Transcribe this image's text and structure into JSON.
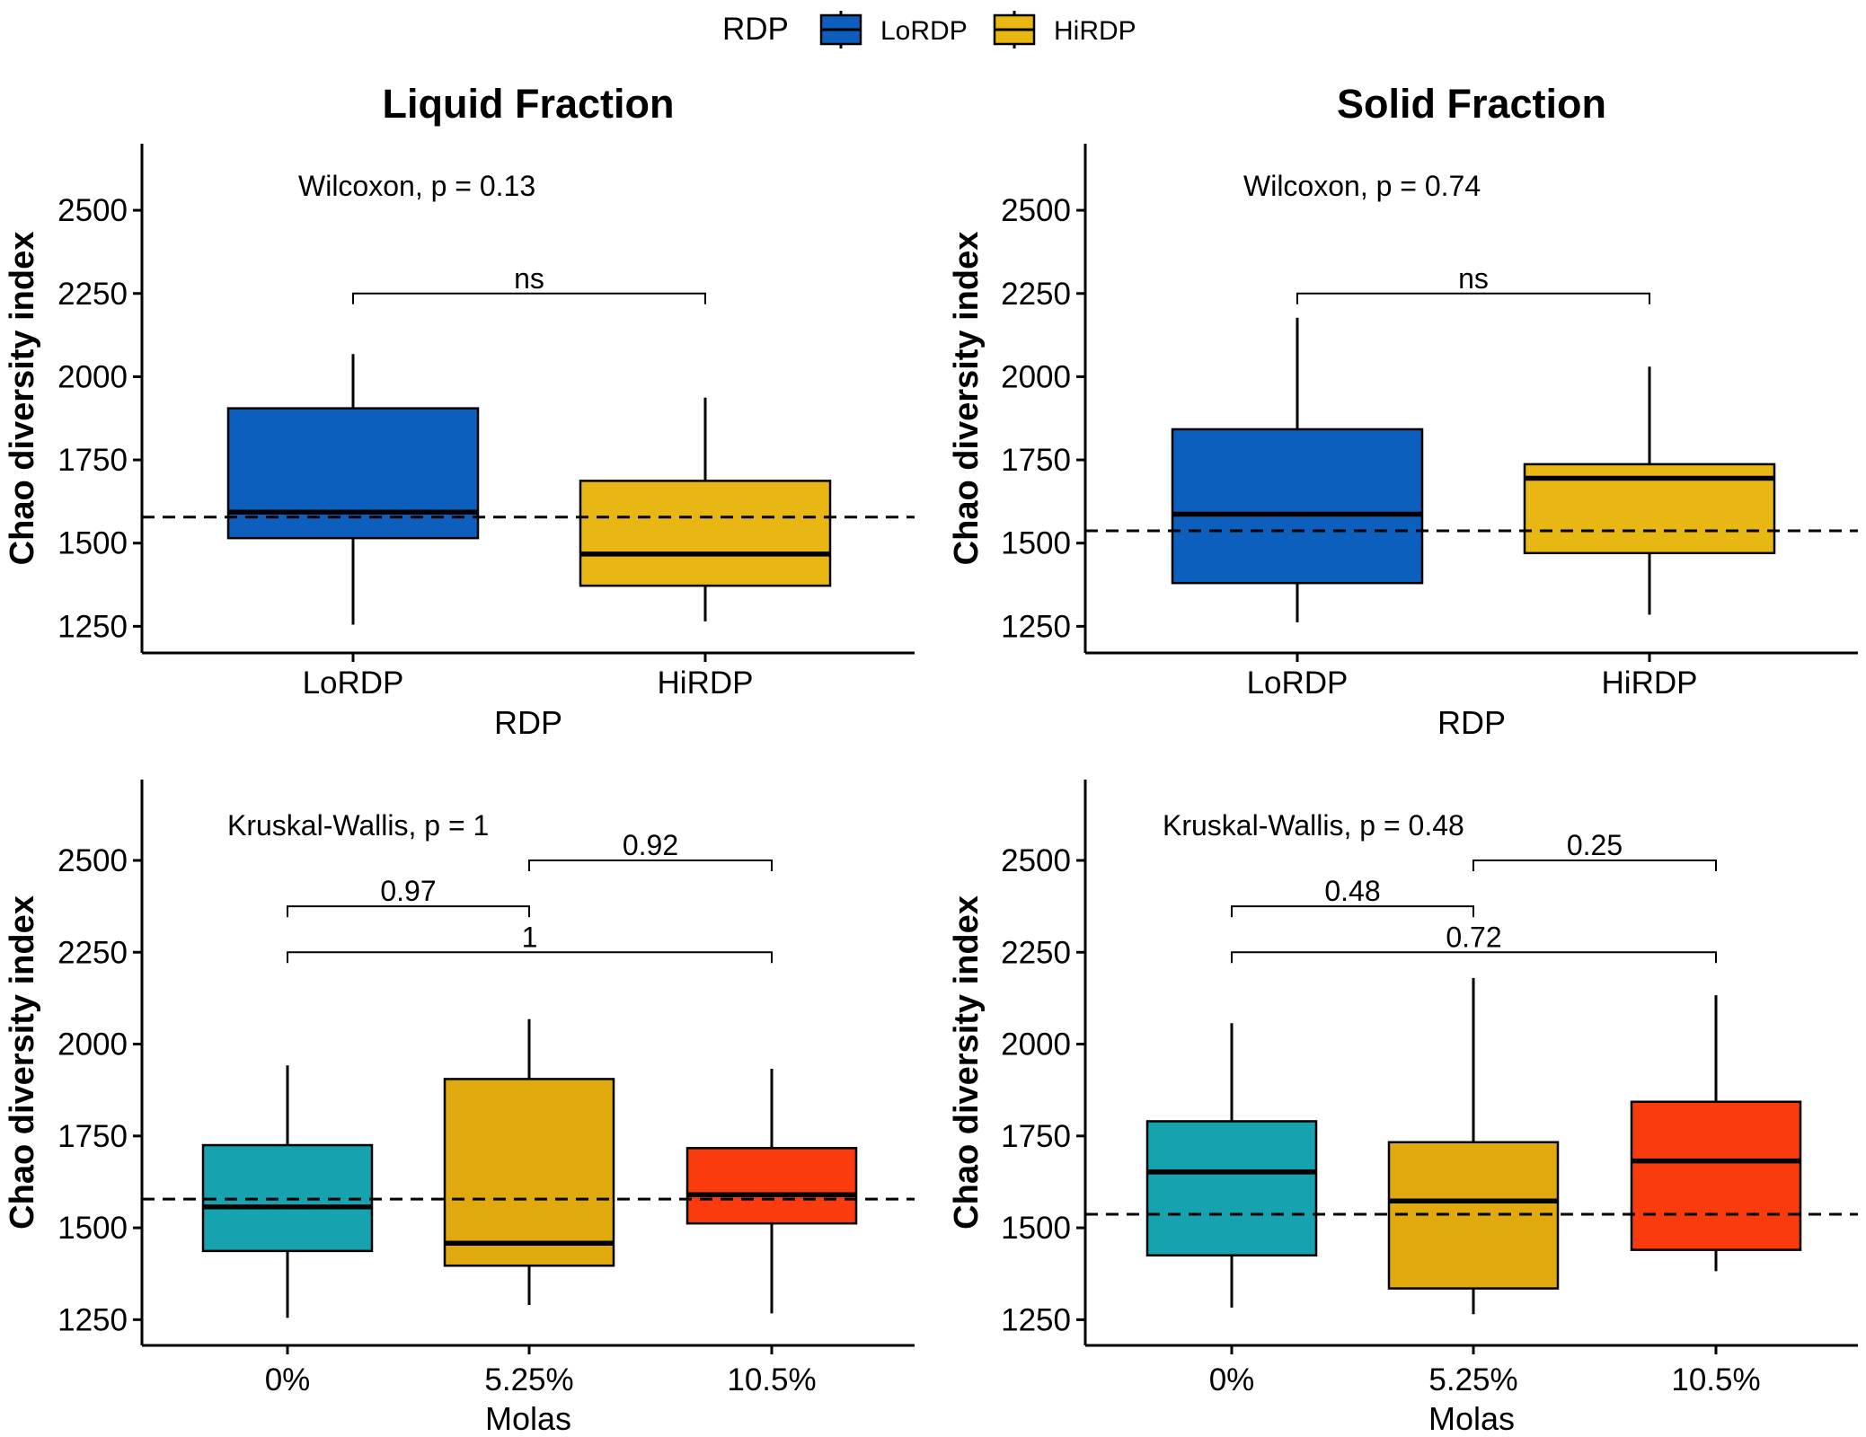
{
  "legend": {
    "title": "RDP",
    "entries": [
      {
        "label": "LoRDP",
        "color": "#0d5fbe"
      },
      {
        "label": "HiRDP",
        "color": "#e9b714"
      }
    ]
  },
  "chart_data": [
    {
      "type": "box",
      "title": "Liquid Fraction",
      "xlabel": "RDP",
      "ylabel": "Chao diversity index",
      "ylim": [
        1170,
        2700
      ],
      "yticks": [
        1250,
        1500,
        1750,
        2000,
        2250,
        2500
      ],
      "categories": [
        "LoRDP",
        "HiRDP"
      ],
      "reference_line": 1578,
      "test_label": "Wilcoxon, p = 0.13",
      "boxes": [
        {
          "category": "LoRDP",
          "min": 1255,
          "q1": 1515,
          "median": 1593,
          "q3": 1905,
          "max": 2068,
          "color": "#0d5fbe"
        },
        {
          "category": "HiRDP",
          "min": 1265,
          "q1": 1372,
          "median": 1467,
          "q3": 1687,
          "max": 1937,
          "color": "#e9b714"
        }
      ],
      "comparisons": [
        {
          "from": "LoRDP",
          "to": "HiRDP",
          "y": 2250,
          "label": "ns"
        }
      ]
    },
    {
      "type": "box",
      "title": "Solid Fraction",
      "xlabel": "RDP",
      "ylabel": "Chao diversity index",
      "ylim": [
        1170,
        2700
      ],
      "yticks": [
        1250,
        1500,
        1750,
        2000,
        2250,
        2500
      ],
      "categories": [
        "LoRDP",
        "HiRDP"
      ],
      "reference_line": 1537,
      "test_label": "Wilcoxon, p = 0.74",
      "boxes": [
        {
          "category": "LoRDP",
          "min": 1262,
          "q1": 1380,
          "median": 1587,
          "q3": 1842,
          "max": 2177,
          "color": "#0d5fbe"
        },
        {
          "category": "HiRDP",
          "min": 1285,
          "q1": 1470,
          "median": 1695,
          "q3": 1737,
          "max": 2030,
          "color": "#e9b714"
        }
      ],
      "comparisons": [
        {
          "from": "LoRDP",
          "to": "HiRDP",
          "y": 2250,
          "label": "ns"
        }
      ]
    },
    {
      "type": "box",
      "title": "",
      "xlabel": "Molas",
      "ylabel": "Chao diversity index",
      "ylim": [
        1180,
        2720
      ],
      "yticks": [
        1250,
        1500,
        1750,
        2000,
        2250,
        2500
      ],
      "categories": [
        "0%",
        "5.25%",
        "10.5%"
      ],
      "reference_line": 1578,
      "test_label": "Kruskal-Wallis, p = 1",
      "boxes": [
        {
          "category": "0%",
          "min": 1255,
          "q1": 1437,
          "median": 1557,
          "q3": 1725,
          "max": 1942,
          "color": "#16a2af"
        },
        {
          "category": "5.25%",
          "min": 1290,
          "q1": 1397,
          "median": 1458,
          "q3": 1905,
          "max": 2068,
          "color": "#e0a90d"
        },
        {
          "category": "10.5%",
          "min": 1267,
          "q1": 1512,
          "median": 1590,
          "q3": 1717,
          "max": 1933,
          "color": "#f93b0d"
        }
      ],
      "comparisons": [
        {
          "from": "0%",
          "to": "5.25%",
          "y": 2375,
          "label": "0.97"
        },
        {
          "from": "5.25%",
          "to": "10.5%",
          "y": 2500,
          "label": "0.92"
        },
        {
          "from": "0%",
          "to": "10.5%",
          "y": 2250,
          "label": "1"
        }
      ]
    },
    {
      "type": "box",
      "title": "",
      "xlabel": "Molas",
      "ylabel": "Chao diversity index",
      "ylim": [
        1180,
        2720
      ],
      "yticks": [
        1250,
        1500,
        1750,
        2000,
        2250,
        2500
      ],
      "categories": [
        "0%",
        "5.25%",
        "10.5%"
      ],
      "reference_line": 1537,
      "test_label": "Kruskal-Wallis, p = 0.48",
      "boxes": [
        {
          "category": "0%",
          "min": 1283,
          "q1": 1425,
          "median": 1652,
          "q3": 1790,
          "max": 2057,
          "color": "#16a2af"
        },
        {
          "category": "5.25%",
          "min": 1265,
          "q1": 1335,
          "median": 1573,
          "q3": 1733,
          "max": 2180,
          "color": "#e0a90d"
        },
        {
          "category": "10.5%",
          "min": 1382,
          "q1": 1440,
          "median": 1682,
          "q3": 1843,
          "max": 2133,
          "color": "#f93b0d"
        }
      ],
      "comparisons": [
        {
          "from": "0%",
          "to": "5.25%",
          "y": 2375,
          "label": "0.48"
        },
        {
          "from": "5.25%",
          "to": "10.5%",
          "y": 2500,
          "label": "0.25"
        },
        {
          "from": "0%",
          "to": "10.5%",
          "y": 2250,
          "label": "0.72"
        }
      ]
    }
  ]
}
